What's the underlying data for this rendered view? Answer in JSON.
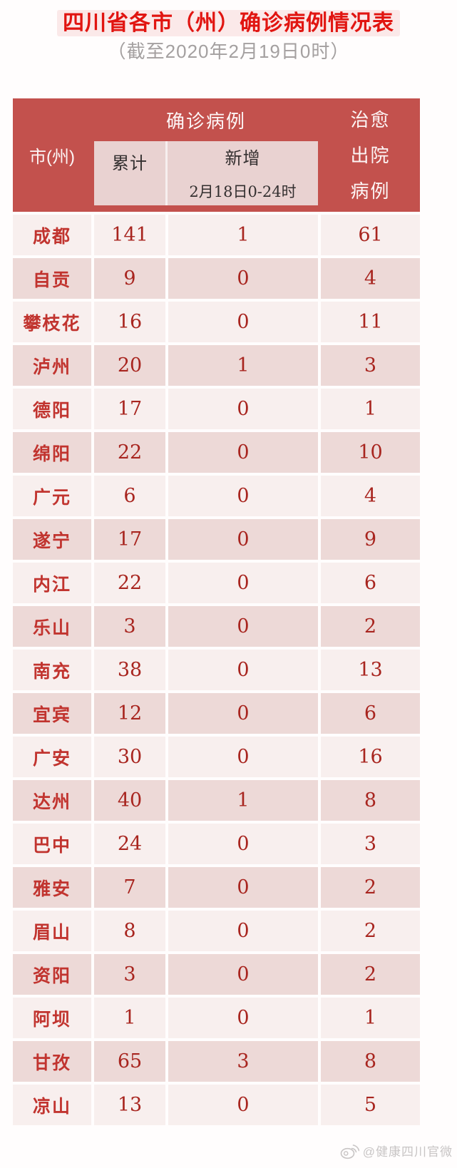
{
  "page": {
    "title": "四川省各市（州）确诊病例情况表",
    "subtitle": "（截至2020年2月19日0时）"
  },
  "table_header": {
    "city": "市(州)",
    "confirmed_group": "确诊病例",
    "cumulative": "累计",
    "new": "新增",
    "new_period": "2月18日0-24时",
    "cured_lines": [
      "治愈",
      "出院",
      "病例"
    ]
  },
  "chart_data": {
    "type": "table",
    "title": "四川省各市（州）确诊病例情况表",
    "subtitle": "（截至2020年2月19日0时）",
    "columns": [
      "市(州)",
      "确诊病例-累计",
      "确诊病例-新增 2月18日0-24时",
      "治愈出院病例"
    ],
    "rows": [
      [
        "成都",
        141,
        1,
        61
      ],
      [
        "自贡",
        9,
        0,
        4
      ],
      [
        "攀枝花",
        16,
        0,
        11
      ],
      [
        "泸州",
        20,
        1,
        3
      ],
      [
        "德阳",
        17,
        0,
        1
      ],
      [
        "绵阳",
        22,
        0,
        10
      ],
      [
        "广元",
        6,
        0,
        4
      ],
      [
        "遂宁",
        17,
        0,
        9
      ],
      [
        "内江",
        22,
        0,
        6
      ],
      [
        "乐山",
        3,
        0,
        2
      ],
      [
        "南充",
        38,
        0,
        13
      ],
      [
        "宜宾",
        12,
        0,
        6
      ],
      [
        "广安",
        30,
        0,
        16
      ],
      [
        "达州",
        40,
        1,
        8
      ],
      [
        "巴中",
        24,
        0,
        3
      ],
      [
        "雅安",
        7,
        0,
        2
      ],
      [
        "眉山",
        8,
        0,
        2
      ],
      [
        "资阳",
        3,
        0,
        2
      ],
      [
        "阿坝",
        1,
        0,
        1
      ],
      [
        "甘孜",
        65,
        3,
        8
      ],
      [
        "凉山",
        13,
        0,
        5
      ]
    ]
  },
  "watermark": {
    "handle": "@健康四川官微",
    "icon": "weibo-icon"
  },
  "colors": {
    "header_red": "#c3514d",
    "subheader_pink": "#e9d2d1",
    "row_light": "#f8efee",
    "row_dark": "#edd9d7",
    "title_red": "#e11511",
    "subtitle_gray": "#a4a0a0",
    "city_text_red": "#c1342f",
    "number_text_red": "#a8251f",
    "watermark_gray": "#c8c5c5"
  }
}
